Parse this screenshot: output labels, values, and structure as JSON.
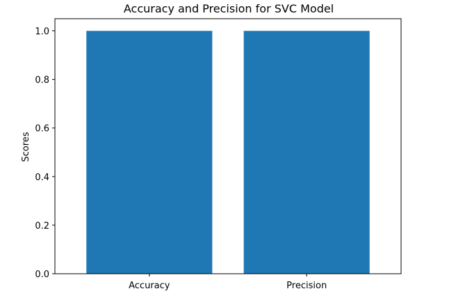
{
  "chart_data": {
    "type": "bar",
    "title": "Accuracy and Precision for SVC Model",
    "xlabel": "",
    "ylabel": "Scores",
    "categories": [
      "Accuracy",
      "Precision"
    ],
    "values": [
      1.0,
      1.0
    ],
    "ylim": [
      0,
      1.05
    ],
    "yticks": [
      0.0,
      0.2,
      0.4,
      0.6,
      0.8,
      1.0
    ],
    "ytick_labels": [
      "0.0",
      "0.2",
      "0.4",
      "0.6",
      "0.8",
      "1.0"
    ],
    "bar_color": "#1f77b4",
    "grid": false
  }
}
